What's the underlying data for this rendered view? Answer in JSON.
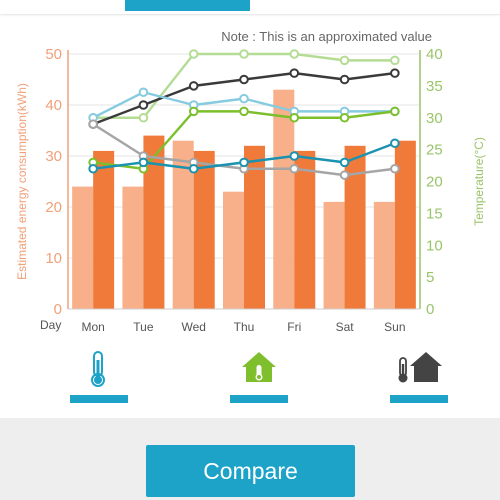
{
  "compare_button": {
    "label": "Compare"
  },
  "mode_buttons": [
    {
      "name": "indoor-temperature",
      "icon": "thermometer-icon",
      "color": "#1ea3c8"
    },
    {
      "name": "home-temperature",
      "icon": "home-thermometer-icon",
      "color": "#7fbf2e"
    },
    {
      "name": "outdoor-temperature",
      "icon": "thermometer-house-icon",
      "color": "#444444"
    }
  ],
  "chart_data": {
    "type": "bar",
    "note": "Note : This is an approximated value",
    "categories": [
      "Mon",
      "Tue",
      "Wed",
      "Thu",
      "Fri",
      "Sat",
      "Sun"
    ],
    "x_axis_label": "Day",
    "ylabel_left": "Estimated energy consumption(kWh)",
    "ylabel_right": "Temperature(°C)",
    "ylim_left": [
      0,
      50
    ],
    "ylim_right": [
      0,
      40
    ],
    "yticks_left": [
      0,
      10,
      20,
      30,
      40,
      50
    ],
    "yticks_right": [
      0,
      5,
      10,
      15,
      20,
      25,
      30,
      35,
      40
    ],
    "left_axis_color": "#f0a07a",
    "right_axis_color": "#9ac46a",
    "grid": true,
    "bar_series": [
      {
        "values": [
          24,
          24,
          33,
          23,
          43,
          21,
          21
        ],
        "color": "#f7b08a"
      },
      {
        "values": [
          31,
          34,
          31,
          32,
          31,
          32,
          33
        ],
        "color": "#f07a3a"
      }
    ],
    "line_series": [
      {
        "values": [
          30,
          30,
          40,
          40,
          40,
          39,
          39
        ],
        "color": "#b5dc94"
      },
      {
        "values": [
          29,
          32,
          35,
          36,
          37,
          36,
          37
        ],
        "color": "#3a3a3a"
      },
      {
        "values": [
          30,
          34,
          32,
          33,
          31,
          31,
          31
        ],
        "color": "#86cbe0"
      },
      {
        "values": [
          23,
          22,
          31,
          31,
          30,
          30,
          31
        ],
        "color": "#7cbf2c"
      },
      {
        "values": [
          29,
          24,
          23,
          22,
          22,
          21,
          22
        ],
        "color": "#a5a5a5"
      },
      {
        "values": [
          22,
          23,
          22,
          23,
          24,
          23,
          26
        ],
        "color": "#1a92b0"
      }
    ]
  }
}
